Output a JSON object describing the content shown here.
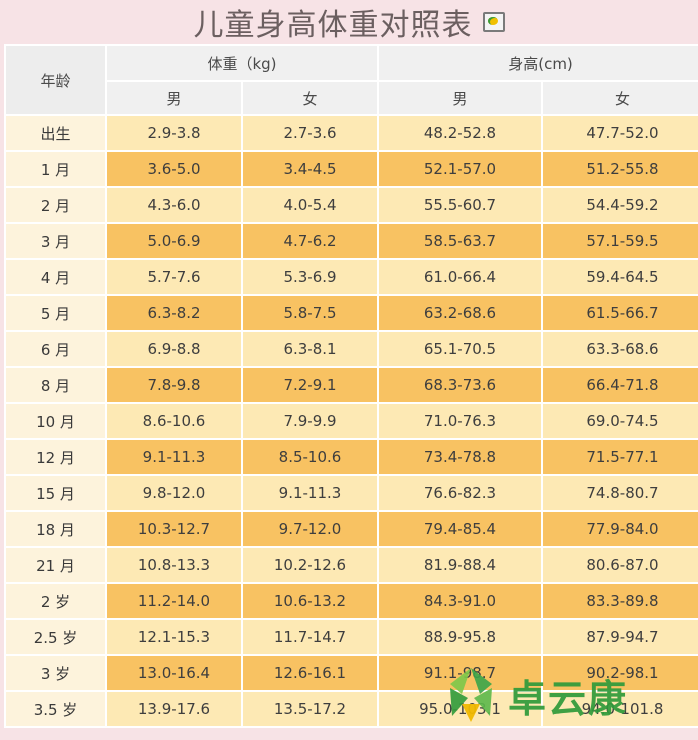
{
  "title": "儿童身高体重对照表",
  "header": {
    "age": "年龄",
    "weight": "体重（kg)",
    "height": "身高(cm)",
    "male": "男",
    "female": "女"
  },
  "rows": [
    {
      "age": "出生",
      "wm": "2.9-3.8",
      "wf": "2.7-3.6",
      "hm": "48.2-52.8",
      "hf": "47.7-52.0"
    },
    {
      "age": "1 月",
      "wm": "3.6-5.0",
      "wf": "3.4-4.5",
      "hm": "52.1-57.0",
      "hf": "51.2-55.8"
    },
    {
      "age": "2 月",
      "wm": "4.3-6.0",
      "wf": "4.0-5.4",
      "hm": "55.5-60.7",
      "hf": "54.4-59.2"
    },
    {
      "age": "3 月",
      "wm": "5.0-6.9",
      "wf": "4.7-6.2",
      "hm": "58.5-63.7",
      "hf": "57.1-59.5"
    },
    {
      "age": "4 月",
      "wm": "5.7-7.6",
      "wf": "5.3-6.9",
      "hm": "61.0-66.4",
      "hf": "59.4-64.5"
    },
    {
      "age": "5 月",
      "wm": "6.3-8.2",
      "wf": "5.8-7.5",
      "hm": "63.2-68.6",
      "hf": "61.5-66.7"
    },
    {
      "age": "6 月",
      "wm": "6.9-8.8",
      "wf": "6.3-8.1",
      "hm": "65.1-70.5",
      "hf": "63.3-68.6"
    },
    {
      "age": "8 月",
      "wm": "7.8-9.8",
      "wf": "7.2-9.1",
      "hm": "68.3-73.6",
      "hf": "66.4-71.8"
    },
    {
      "age": "10 月",
      "wm": "8.6-10.6",
      "wf": "7.9-9.9",
      "hm": "71.0-76.3",
      "hf": "69.0-74.5"
    },
    {
      "age": "12 月",
      "wm": "9.1-11.3",
      "wf": "8.5-10.6",
      "hm": "73.4-78.8",
      "hf": "71.5-77.1"
    },
    {
      "age": "15 月",
      "wm": "9.8-12.0",
      "wf": "9.1-11.3",
      "hm": "76.6-82.3",
      "hf": "74.8-80.7"
    },
    {
      "age": "18 月",
      "wm": "10.3-12.7",
      "wf": "9.7-12.0",
      "hm": "79.4-85.4",
      "hf": "77.9-84.0"
    },
    {
      "age": "21 月",
      "wm": "10.8-13.3",
      "wf": "10.2-12.6",
      "hm": "81.9-88.4",
      "hf": "80.6-87.0"
    },
    {
      "age": "2 岁",
      "wm": "11.2-14.0",
      "wf": "10.6-13.2",
      "hm": "84.3-91.0",
      "hf": "83.3-89.8"
    },
    {
      "age": "2.5 岁",
      "wm": "12.1-15.3",
      "wf": "11.7-14.7",
      "hm": "88.9-95.8",
      "hf": "87.9-94.7"
    },
    {
      "age": "3 岁",
      "wm": "13.0-16.4",
      "wf": "12.6-16.1",
      "hm": "91.1-98.7",
      "hf": "90.2-98.1"
    },
    {
      "age": "3.5 岁",
      "wm": "13.9-17.6",
      "wf": "13.5-17.2",
      "hm": "95.0-103.1",
      "hf": "94.0-101.8"
    }
  ],
  "watermark": "卓云康",
  "colors": {
    "row_light": "#fde9b4",
    "row_dark": "#f8c262",
    "age_cell": "#fdf3dc",
    "header": "#f0f0f0",
    "watermark_green": "#2f9a3a"
  }
}
